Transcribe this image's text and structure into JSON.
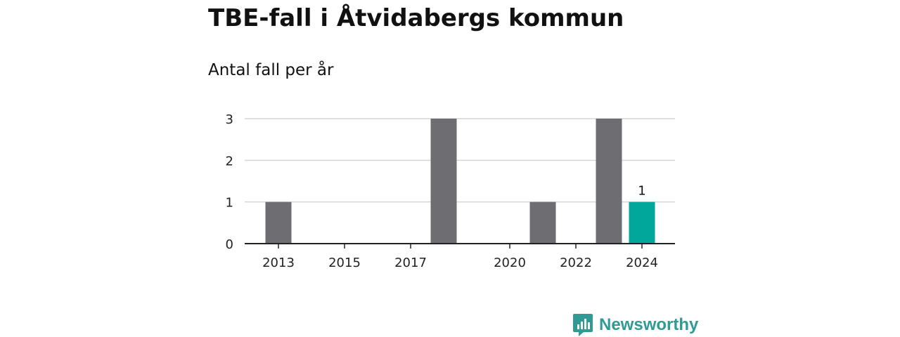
{
  "title": "TBE-fall i Åtvidabergs kommun",
  "subtitle": "Antal fall per år",
  "brand": {
    "name": "Newsworthy",
    "icon": "newsworthy-logo-icon",
    "color": "#2f9b94"
  },
  "colors": {
    "bar": "#6e6d72",
    "highlight": "#00a79a",
    "grid": "#d6d6d6",
    "axis": "#222222"
  },
  "chart_data": {
    "type": "bar",
    "title": "TBE-fall i Åtvidabergs kommun",
    "subtitle": "Antal fall per år",
    "xlabel": "",
    "ylabel": "",
    "categories": [
      "2013",
      "2014",
      "2015",
      "2016",
      "2017",
      "2018",
      "2019",
      "2020",
      "2021",
      "2022",
      "2023",
      "2024"
    ],
    "values": [
      1,
      0,
      0,
      0,
      0,
      3,
      0,
      0,
      1,
      0,
      3,
      1
    ],
    "highlight_index": 11,
    "data_labels": [
      {
        "index": 11,
        "text": "1"
      }
    ],
    "x_tick_labels": [
      "2013",
      "2015",
      "2017",
      "2020",
      "2022",
      "2024"
    ],
    "y_ticks": [
      "0",
      "1",
      "2",
      "3"
    ],
    "ylim": [
      0,
      3
    ],
    "grid": true,
    "legend": "none"
  }
}
